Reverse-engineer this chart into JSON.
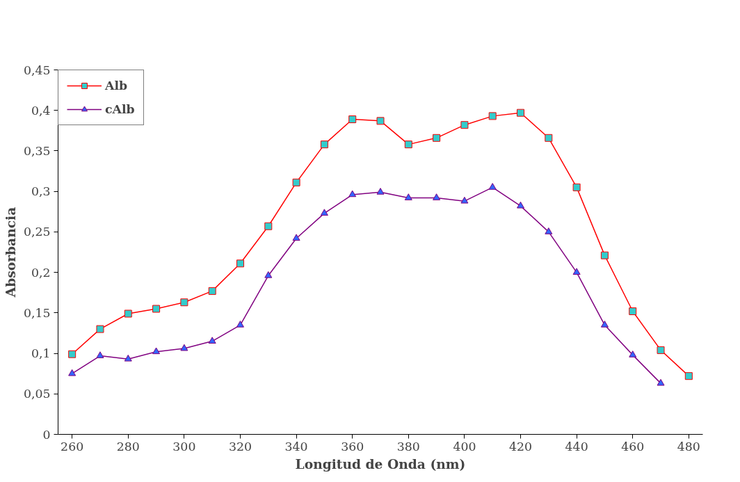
{
  "chart_data": {
    "type": "line",
    "xlabel": "Longitud de Onda (nm)",
    "ylabel": "Absorbancia",
    "x": [
      260,
      270,
      280,
      290,
      300,
      310,
      320,
      330,
      340,
      350,
      360,
      370,
      380,
      390,
      400,
      410,
      420,
      430,
      440,
      450,
      460,
      470,
      480
    ],
    "series": [
      {
        "name": "Alb",
        "color": "#ff0000",
        "marker": "square",
        "values": [
          0.099,
          0.13,
          0.149,
          0.155,
          0.163,
          0.177,
          0.211,
          0.257,
          0.311,
          0.358,
          0.389,
          0.387,
          0.358,
          0.366,
          0.382,
          0.393,
          0.397,
          0.366,
          0.305,
          0.221,
          0.152,
          0.104,
          0.072
        ]
      },
      {
        "name": "cAlb",
        "color": "#800080",
        "marker": "triangle",
        "values": [
          0.075,
          0.097,
          0.093,
          0.102,
          0.106,
          0.115,
          0.135,
          0.196,
          0.242,
          0.273,
          0.296,
          0.299,
          0.292,
          0.292,
          0.288,
          0.305,
          0.282,
          0.25,
          0.2,
          0.135,
          0.098,
          0.063,
          null
        ]
      }
    ],
    "xlim": [
      255,
      485
    ],
    "xticks": [
      260,
      280,
      300,
      320,
      340,
      360,
      380,
      400,
      420,
      440,
      460,
      480
    ],
    "ylim": [
      0,
      0.45
    ],
    "yticks": [
      {
        "value": 0,
        "label": "0"
      },
      {
        "value": 0.05,
        "label": "0,05"
      },
      {
        "value": 0.1,
        "label": "0,1"
      },
      {
        "value": 0.15,
        "label": "0,15"
      },
      {
        "value": 0.2,
        "label": "0,2"
      },
      {
        "value": 0.25,
        "label": "0,25"
      },
      {
        "value": 0.3,
        "label": "0,3"
      },
      {
        "value": 0.35,
        "label": "0,35"
      },
      {
        "value": 0.4,
        "label": "0,4"
      },
      {
        "value": 0.45,
        "label": "0,45"
      }
    ],
    "grid": false,
    "legend": "top left",
    "line_style": "solid"
  }
}
